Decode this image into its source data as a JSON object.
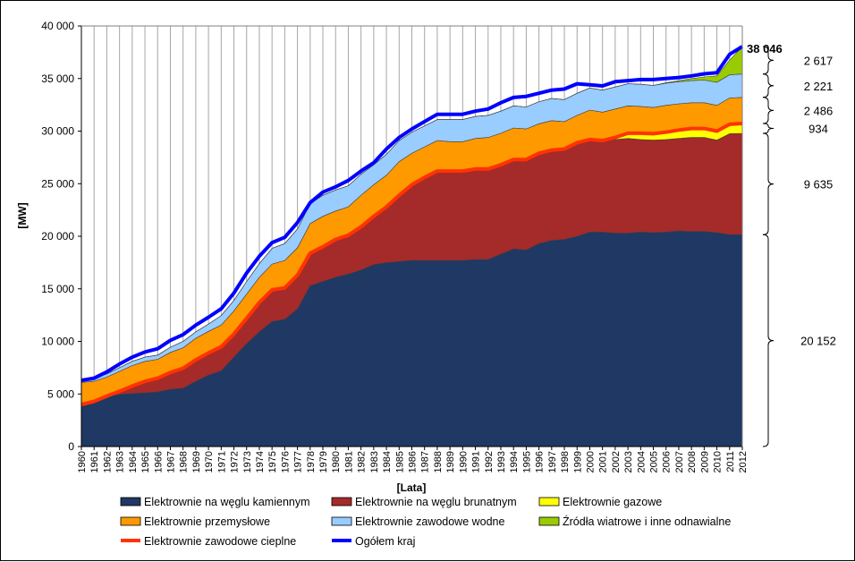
{
  "chart_data": {
    "type": "area",
    "ylabel": "[MW]",
    "xlabel": "[Lata]",
    "ylim": [
      0,
      40000
    ],
    "yticks": [
      0,
      5000,
      10000,
      15000,
      20000,
      25000,
      30000,
      35000,
      40000
    ],
    "ytick_labels": [
      "0",
      "5 000",
      "10 000",
      "15 000",
      "20 000",
      "25 000",
      "30 000",
      "35 000",
      "40 000"
    ],
    "grid": "vertical lines at each year",
    "legend_position": "bottom",
    "x": [
      1960,
      1961,
      1962,
      1963,
      1964,
      1965,
      1966,
      1967,
      1968,
      1969,
      1970,
      1971,
      1972,
      1973,
      1974,
      1975,
      1976,
      1977,
      1978,
      1979,
      1980,
      1981,
      1982,
      1983,
      1984,
      1985,
      1986,
      1987,
      1988,
      1989,
      1990,
      1991,
      1992,
      1993,
      1994,
      1995,
      1996,
      1997,
      1998,
      1999,
      2000,
      2001,
      2002,
      2003,
      2004,
      2005,
      2006,
      2007,
      2008,
      2009,
      2010,
      2011,
      2012
    ],
    "series": [
      {
        "name": "Elektrownie na węglu kamiennym",
        "color": "#1f3864",
        "kind": "area",
        "values": [
          4000,
          4300,
          4800,
          4950,
          5050,
          5100,
          5200,
          5450,
          5550,
          6200,
          6800,
          7200,
          8500,
          9800,
          10900,
          11900,
          12100,
          13100,
          15300,
          15700,
          16100,
          16400,
          16800,
          17300,
          17500,
          17600,
          17700,
          17700,
          17700,
          17700,
          17700,
          17800,
          17800,
          18300,
          18800,
          18700,
          19300,
          19600,
          19700,
          20000,
          20400,
          20400,
          20300,
          20300,
          20400,
          20350,
          20400,
          20500,
          20450,
          20450,
          20350,
          20150,
          20152
        ]
      },
      {
        "name": "Elektrownie na węglu brunatnym",
        "color": "#a52a2a",
        "kind": "area",
        "values": [
          0,
          0,
          0,
          300,
          700,
          1100,
          1300,
          1600,
          1900,
          2050,
          2100,
          2300,
          2200,
          2400,
          2800,
          3000,
          3000,
          3200,
          3100,
          3300,
          3600,
          3700,
          4100,
          4600,
          5300,
          6300,
          7200,
          7900,
          8500,
          8500,
          8500,
          8600,
          8600,
          8500,
          8500,
          8600,
          8600,
          8600,
          8600,
          8900,
          8800,
          8700,
          8900,
          9000,
          8800,
          8800,
          8800,
          8800,
          8950,
          8950,
          8800,
          9600,
          9635
        ]
      },
      {
        "name": "Elektrownie gazowe",
        "color": "#ffff00",
        "kind": "area",
        "values": [
          0,
          0,
          0,
          0,
          0,
          0,
          0,
          0,
          0,
          0,
          0,
          0,
          0,
          0,
          0,
          0,
          0,
          0,
          0,
          0,
          0,
          0,
          0,
          0,
          0,
          0,
          0,
          0,
          0,
          0,
          0,
          0,
          0,
          0,
          0,
          0,
          0,
          0,
          0,
          0,
          0,
          0,
          200,
          500,
          600,
          600,
          700,
          800,
          850,
          850,
          850,
          900,
          934
        ]
      },
      {
        "name": "Elektrownie przemysłowe",
        "color": "#ff9900",
        "kind": "area",
        "values": [
          2100,
          1900,
          1800,
          1900,
          1950,
          1900,
          1800,
          1900,
          1950,
          2050,
          2050,
          2050,
          2200,
          2300,
          2400,
          2450,
          2600,
          2600,
          2800,
          2900,
          2700,
          2700,
          3000,
          3000,
          3000,
          3200,
          3000,
          2900,
          2900,
          2800,
          2800,
          2900,
          3000,
          3000,
          3000,
          2900,
          2800,
          2800,
          2600,
          2600,
          2800,
          2700,
          2700,
          2600,
          2550,
          2500,
          2550,
          2500,
          2450,
          2450,
          2450,
          2500,
          2486
        ]
      },
      {
        "name": "Elektrownie zawodowe wodne",
        "color": "#99ccff",
        "kind": "area",
        "values": [
          200,
          300,
          300,
          350,
          400,
          400,
          400,
          500,
          600,
          600,
          700,
          900,
          1000,
          1200,
          1300,
          1500,
          1600,
          1800,
          1900,
          2000,
          2000,
          2000,
          2000,
          1900,
          2000,
          2000,
          2000,
          2000,
          2000,
          2100,
          2100,
          2100,
          2100,
          2100,
          2100,
          2100,
          2100,
          2100,
          2100,
          2100,
          2100,
          2100,
          2100,
          2100,
          2100,
          2100,
          2100,
          2100,
          2100,
          2150,
          2200,
          2200,
          2221
        ]
      },
      {
        "name": "Źródła wiatrowe i inne odnawialne",
        "color": "#99cc00",
        "kind": "area",
        "values": [
          0,
          0,
          0,
          0,
          0,
          0,
          0,
          0,
          0,
          0,
          0,
          0,
          0,
          0,
          0,
          0,
          0,
          0,
          0,
          0,
          0,
          0,
          0,
          0,
          0,
          0,
          0,
          0,
          0,
          0,
          0,
          0,
          0,
          0,
          0,
          0,
          0,
          0,
          0,
          0,
          0,
          0,
          0,
          0,
          0,
          0,
          50,
          100,
          200,
          300,
          600,
          1400,
          2617
        ]
      },
      {
        "name": "Elektrownie zawodowe cieplne",
        "color": "#ff3300",
        "kind": "line",
        "values": [
          4000,
          4300,
          4800,
          5250,
          5750,
          6200,
          6500,
          7050,
          7450,
          8250,
          8900,
          9500,
          10700,
          12200,
          13700,
          14900,
          15100,
          16300,
          18400,
          19000,
          19700,
          20100,
          20900,
          21900,
          22800,
          23900,
          24900,
          25600,
          26200,
          26200,
          26200,
          26400,
          26400,
          26800,
          27300,
          27300,
          27900,
          28200,
          28300,
          28900,
          29200,
          29100,
          29400,
          29800,
          29800,
          29750,
          29900,
          30100,
          30250,
          30250,
          30000,
          30650,
          30721
        ]
      },
      {
        "name": "Ogółem kraj",
        "color": "#0000ff",
        "kind": "line",
        "values": [
          6300,
          6500,
          7100,
          7850,
          8500,
          9000,
          9300,
          10100,
          10650,
          11550,
          12300,
          13100,
          14600,
          16500,
          18100,
          19400,
          19900,
          21300,
          23200,
          24200,
          24700,
          25300,
          26200,
          27000,
          28300,
          29400,
          30200,
          30900,
          31600,
          31600,
          31600,
          31900,
          32100,
          32700,
          33200,
          33300,
          33600,
          33900,
          34000,
          34500,
          34400,
          34300,
          34700,
          34800,
          34900,
          34900,
          35000,
          35100,
          35250,
          35450,
          35550,
          37300,
          38046
        ]
      }
    ],
    "brackets": [
      {
        "from": 35429,
        "to": 38046,
        "label": "2 617"
      },
      {
        "from": 33208,
        "to": 35429,
        "label": "2 221"
      },
      {
        "from": 30721,
        "to": 33208,
        "label": "2 486"
      },
      {
        "from": 29787,
        "to": 30721,
        "label": "934"
      },
      {
        "from": 20152,
        "to": 29787,
        "label": "9 635"
      },
      {
        "from": 0,
        "to": 20152,
        "label": "20 152"
      }
    ],
    "total_label": "38 046"
  }
}
